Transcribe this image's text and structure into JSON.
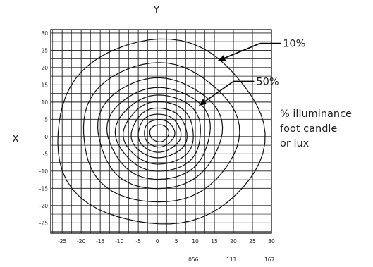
{
  "chart_data": {
    "type": "contour",
    "xlabel": "X",
    "ylabel": "Y",
    "xlim": [
      -28,
      30
    ],
    "ylim": [
      -28,
      31
    ],
    "x_ticks": [
      -25,
      -20,
      -15,
      -10,
      -5,
      0,
      5,
      10,
      15,
      20,
      25,
      30
    ],
    "y_ticks": [
      30,
      25,
      20,
      15,
      10,
      5,
      0,
      -5,
      -10,
      -15,
      -20,
      -25
    ],
    "x_tick_labels": [
      "-25",
      "-20",
      "-15",
      "-10",
      "-5",
      "0",
      "5",
      "10",
      "15",
      "20",
      "25",
      "30"
    ],
    "y_tick_labels": [
      "30",
      "25",
      "20",
      "15",
      "10",
      "5",
      "0",
      "-5",
      "-10",
      "-15",
      "-20",
      "-25"
    ],
    "secondary_x_labels": [
      {
        "x": 10,
        "label": ".056"
      },
      {
        "x": 20,
        "label": ".111"
      },
      {
        "x": 30,
        "label": ".167"
      }
    ],
    "grid": true,
    "center": [
      0.5,
      1
    ],
    "contour_radii": [
      2.5,
      4,
      5.6,
      7.3,
      9.2,
      11.2,
      13.5,
      16.3,
      20.5,
      27.2
    ],
    "annotations": [
      {
        "label": "10%",
        "arrow_to": [
          16,
          22
        ],
        "arrow_from": [
          27,
          27
        ],
        "text_at": [
          33,
          27
        ]
      },
      {
        "label": "50%",
        "arrow_to": [
          11,
          9
        ],
        "arrow_from": [
          20,
          16
        ],
        "text_at": [
          26,
          16
        ]
      }
    ],
    "legend_text": [
      "% illuminance",
      "foot candle",
      "or lux"
    ]
  }
}
